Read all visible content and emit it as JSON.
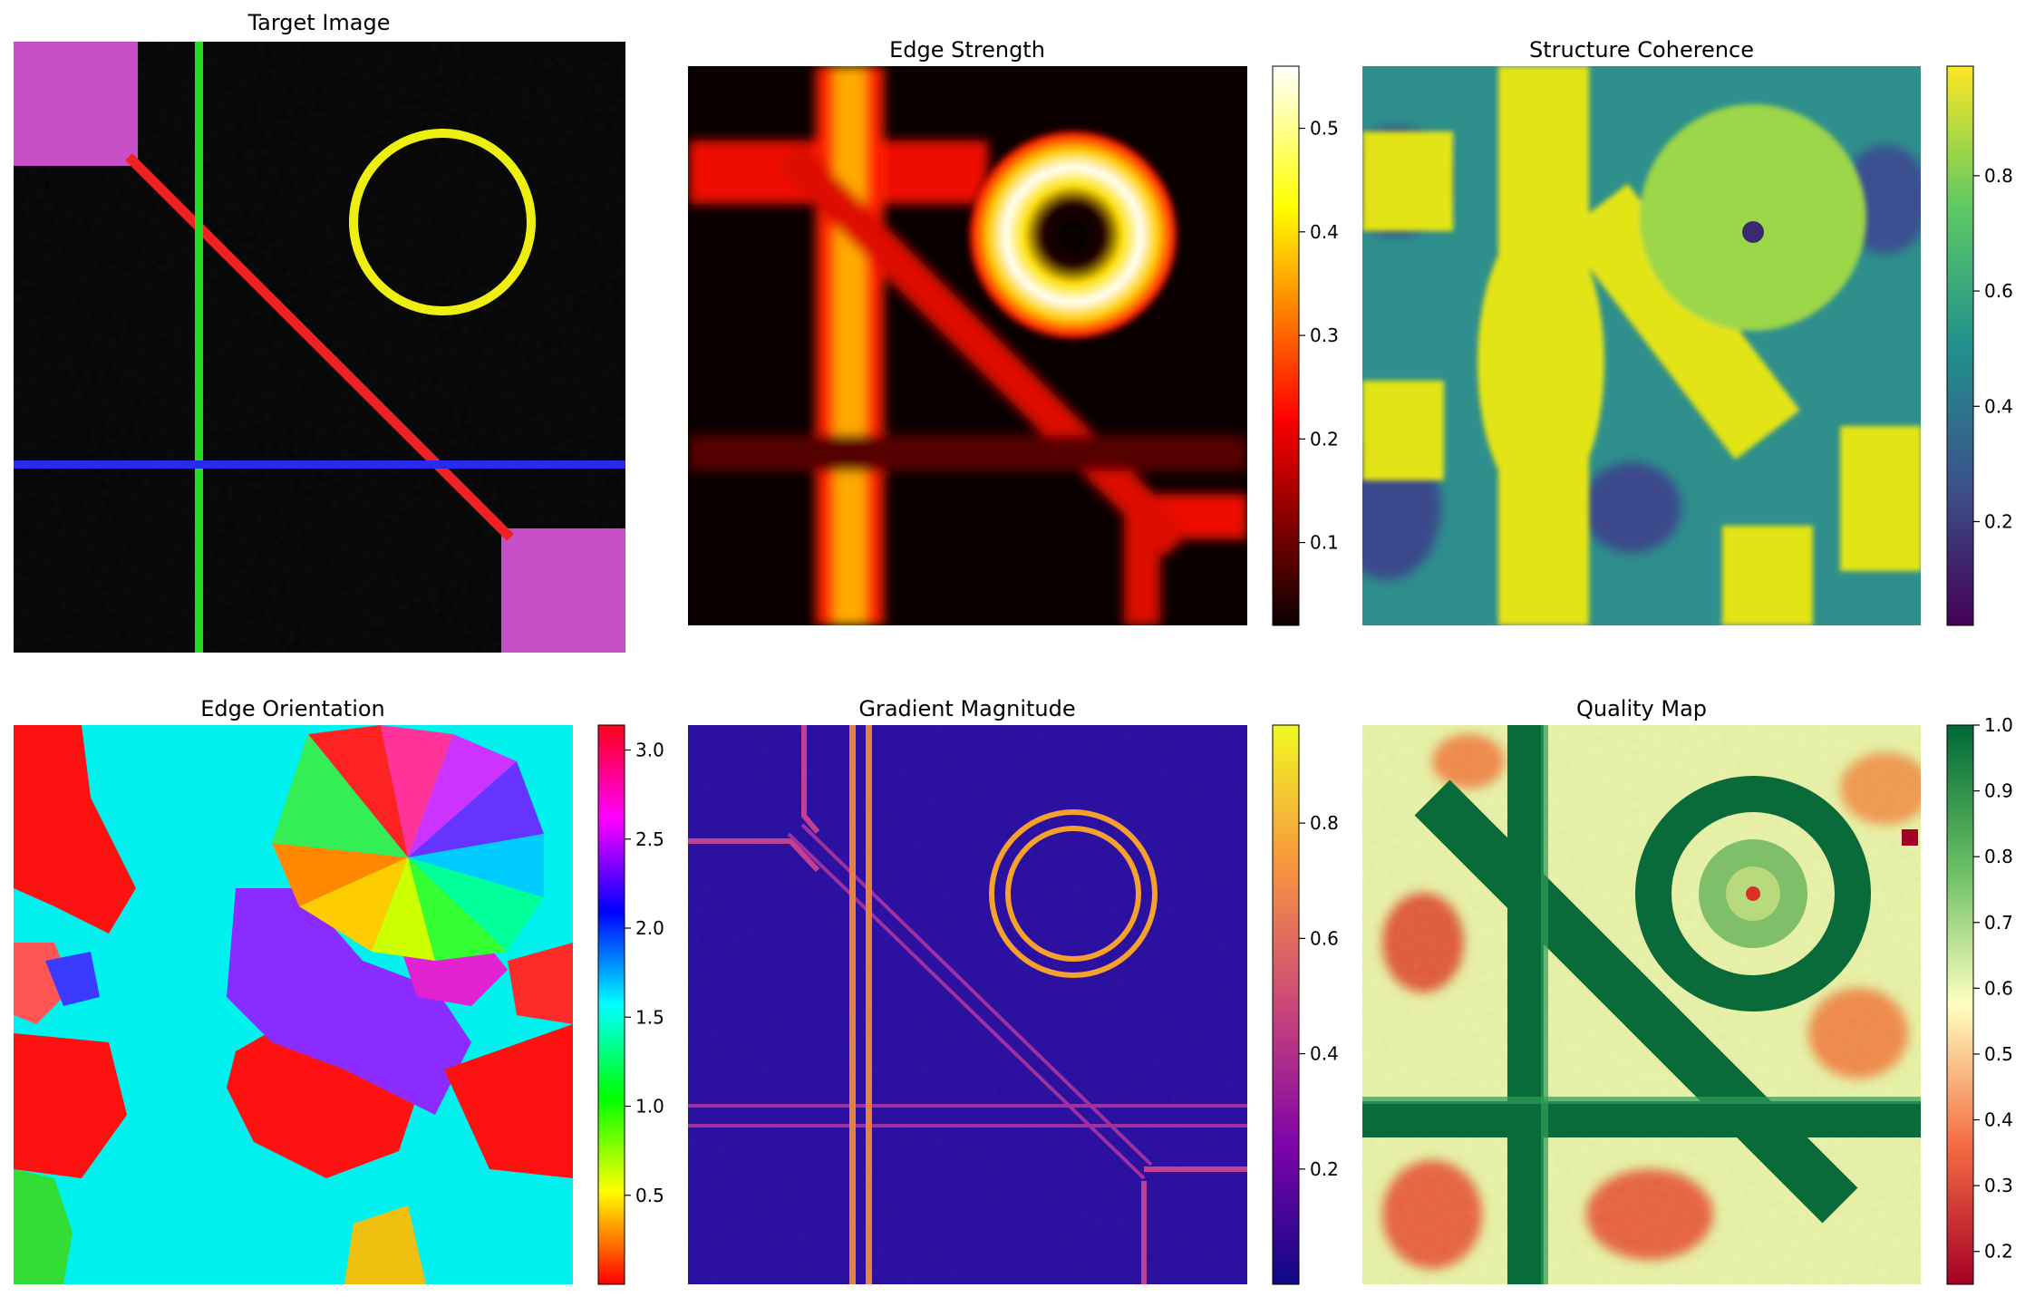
{
  "figure": {
    "panels": [
      {
        "title": "Target Image",
        "colorbar": null
      },
      {
        "title": "Edge Strength",
        "colorbar": {
          "cmap": "hot",
          "ticks": [
            "0.1",
            "0.2",
            "0.3",
            "0.4",
            "0.5"
          ]
        }
      },
      {
        "title": "Structure Coherence",
        "colorbar": {
          "cmap": "viridis",
          "ticks": [
            "0.2",
            "0.4",
            "0.6",
            "0.8"
          ]
        }
      },
      {
        "title": "Edge Orientation",
        "colorbar": {
          "cmap": "hsv",
          "ticks": [
            "0.5",
            "1.0",
            "1.5",
            "2.0",
            "2.5",
            "3.0"
          ]
        }
      },
      {
        "title": "Gradient Magnitude",
        "colorbar": {
          "cmap": "plasma",
          "ticks": [
            "0.2",
            "0.4",
            "0.6",
            "0.8"
          ]
        }
      },
      {
        "title": "Quality Map",
        "colorbar": {
          "cmap": "RdYlGn",
          "ticks": [
            "0.2",
            "0.3",
            "0.4",
            "0.5",
            "0.6",
            "0.7",
            "0.8",
            "0.9",
            "1.0"
          ]
        }
      }
    ]
  },
  "chart_data": [
    {
      "type": "heatmap",
      "title": "Target Image",
      "content": "RGB image: magenta squares top-left and bottom-right, green vertical line, blue horizontal line, red diagonal line, yellow ring",
      "colors": {
        "magenta": "#c94fc9",
        "green": "#22dd22",
        "blue": "#2a2aee",
        "red": "#ee2222",
        "yellow": "#eeee11",
        "background": "#050505"
      }
    },
    {
      "type": "heatmap",
      "title": "Edge Strength",
      "colormap": "hot",
      "clim": [
        0.02,
        0.56
      ],
      "colorbar_ticks": [
        0.1,
        0.2,
        0.3,
        0.4,
        0.5
      ]
    },
    {
      "type": "heatmap",
      "title": "Structure Coherence",
      "colormap": "viridis",
      "clim": [
        0.02,
        0.99
      ],
      "colorbar_ticks": [
        0.2,
        0.4,
        0.6,
        0.8
      ]
    },
    {
      "type": "heatmap",
      "title": "Edge Orientation",
      "colormap": "hsv",
      "clim": [
        0.0,
        3.14
      ],
      "colorbar_ticks": [
        0.5,
        1.0,
        1.5,
        2.0,
        2.5,
        3.0
      ]
    },
    {
      "type": "heatmap",
      "title": "Gradient Magnitude",
      "colormap": "plasma",
      "clim": [
        0.0,
        0.97
      ],
      "colorbar_ticks": [
        0.2,
        0.4,
        0.6,
        0.8
      ]
    },
    {
      "type": "heatmap",
      "title": "Quality Map",
      "colormap": "RdYlGn",
      "clim": [
        0.15,
        1.0
      ],
      "colorbar_ticks": [
        0.2,
        0.3,
        0.4,
        0.5,
        0.6,
        0.7,
        0.8,
        0.9,
        1.0
      ]
    }
  ]
}
